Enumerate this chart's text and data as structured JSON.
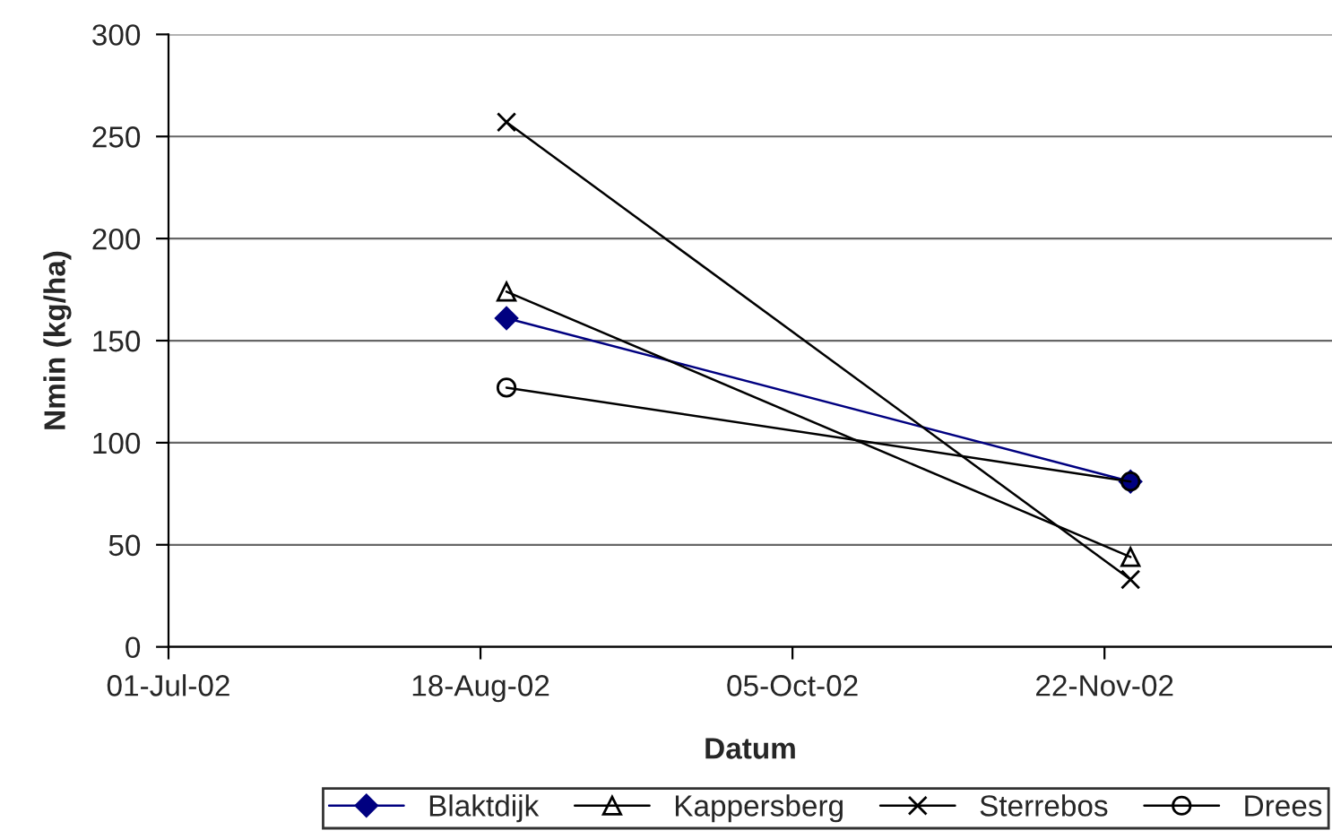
{
  "chart_data": {
    "type": "line",
    "xlabel": "Datum",
    "ylabel": "Nmin (kg/ha)",
    "x": [
      "2002-08-22",
      "2002-11-26"
    ],
    "series": [
      {
        "name": "Blaktdijk",
        "color": "#000080",
        "marker": "diamond",
        "values": [
          161,
          81
        ]
      },
      {
        "name": "Kappersberg",
        "color": "#000000",
        "marker": "triangle",
        "values": [
          174,
          44
        ]
      },
      {
        "name": "Sterrebos",
        "color": "#000000",
        "marker": "cross",
        "values": [
          257,
          33
        ]
      },
      {
        "name": "Drees",
        "color": "#000000",
        "marker": "circle",
        "values": [
          127,
          81
        ]
      }
    ],
    "xlim": [
      "2002-07-01",
      "2002-12-27"
    ],
    "xticks": [
      {
        "value": "2002-07-01",
        "label": "01-Jul-02"
      },
      {
        "value": "2002-08-18",
        "label": "18-Aug-02"
      },
      {
        "value": "2002-10-05",
        "label": "05-Oct-02"
      },
      {
        "value": "2002-11-22",
        "label": "22-Nov-02"
      }
    ],
    "ylim": [
      0,
      300
    ],
    "yticks": [
      0,
      50,
      100,
      150,
      200,
      250,
      300
    ],
    "grid": "y",
    "legend": "bottom"
  }
}
